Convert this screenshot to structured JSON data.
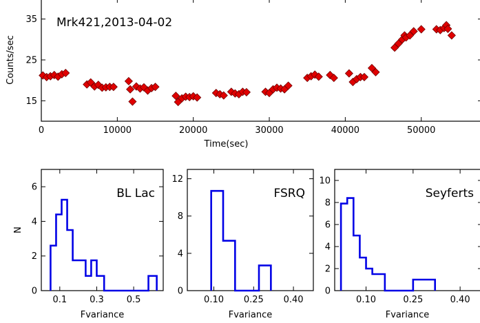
{
  "chart_data": [
    {
      "type": "scatter",
      "title": "Mrk421,2013-04-02",
      "xlabel": "Time(sec)",
      "ylabel": "Counts/sec",
      "xlim": [
        0,
        58000
      ],
      "ylim": [
        10,
        40
      ],
      "xticks": [
        0,
        10000,
        20000,
        30000,
        40000,
        50000
      ],
      "xtick_labels": [
        "0",
        "10000",
        "20000",
        "30000",
        "40000",
        "50000"
      ],
      "yticks": [
        15,
        25,
        35
      ],
      "ytick_labels": [
        "15",
        "25",
        "35"
      ],
      "marker": "diamond",
      "color": "#e00000",
      "x": [
        200,
        700,
        1200,
        1700,
        2200,
        2700,
        3200,
        6000,
        6500,
        7000,
        7500,
        8000,
        8500,
        9000,
        9500,
        11500,
        11700,
        12000,
        12500,
        13000,
        13500,
        14000,
        14500,
        15000,
        17700,
        18000,
        18500,
        19000,
        19500,
        20000,
        20500,
        23000,
        23500,
        24000,
        25000,
        25500,
        26000,
        26500,
        27000,
        29500,
        30000,
        30500,
        31000,
        31500,
        32000,
        32500,
        35000,
        35500,
        36000,
        36500,
        38000,
        38500,
        40500,
        41000,
        41500,
        42000,
        42500,
        43500,
        44000,
        46500,
        47000,
        47500,
        47800,
        48000,
        48500,
        49000,
        50000,
        52000,
        52500,
        53000,
        53300,
        53500,
        54000
      ],
      "y": [
        21.2,
        20.8,
        21.0,
        21.3,
        20.9,
        21.5,
        21.8,
        19.0,
        19.5,
        18.5,
        18.9,
        18.2,
        18.3,
        18.4,
        18.4,
        19.8,
        17.8,
        14.8,
        18.5,
        18.0,
        18.3,
        17.5,
        18.1,
        18.4,
        16.2,
        14.7,
        15.6,
        16.0,
        15.9,
        16.1,
        15.8,
        16.9,
        16.6,
        16.3,
        17.2,
        16.8,
        16.6,
        17.2,
        17.1,
        17.2,
        16.9,
        17.8,
        18.2,
        18.0,
        17.8,
        18.7,
        20.6,
        21.0,
        21.4,
        20.9,
        21.3,
        20.6,
        21.7,
        19.6,
        20.3,
        20.8,
        20.8,
        23.0,
        22.0,
        28.0,
        29.0,
        30.0,
        31.0,
        30.5,
        31.0,
        32.0,
        32.5,
        32.5,
        32.3,
        32.8,
        33.5,
        32.6,
        31.0
      ]
    },
    {
      "type": "histogram",
      "annotation": "BL Lac",
      "xlabel": "Fvariance",
      "ylabel": "N",
      "xlim": [
        0.0,
        0.66
      ],
      "ylim": [
        0,
        7
      ],
      "xticks": [
        0.1,
        0.3,
        0.5
      ],
      "xtick_labels": [
        "0.1",
        "0.3",
        "0.5"
      ],
      "yticks": [
        0,
        2,
        4,
        6
      ],
      "ytick_labels": [
        "0",
        "2",
        "4",
        "6"
      ],
      "color": "#0000e6",
      "bin_edges": [
        0.05,
        0.08,
        0.11,
        0.14,
        0.17,
        0.24,
        0.27,
        0.3,
        0.34,
        0.44,
        0.58,
        0.625
      ],
      "counts": [
        2.6,
        4.4,
        5.25,
        3.5,
        1.75,
        0.85,
        1.75,
        0.85,
        0.0,
        0.0,
        0.85
      ]
    },
    {
      "type": "histogram",
      "annotation": "FSRQ",
      "xlabel": "Fvariance",
      "ylabel": "",
      "xlim": [
        0.0,
        0.475
      ],
      "ylim": [
        0,
        13
      ],
      "xticks": [
        0.1,
        0.25,
        0.4
      ],
      "xtick_labels": [
        "0.10",
        "0.25",
        "0.40"
      ],
      "yticks": [
        0,
        4,
        8,
        12
      ],
      "ytick_labels": [
        "0",
        "4",
        "8",
        "12"
      ],
      "color": "#0000e6",
      "bin_edges": [
        0.09,
        0.135,
        0.18,
        0.225,
        0.27,
        0.315
      ],
      "counts": [
        10.7,
        5.35,
        0.0,
        0.0,
        2.7
      ]
    },
    {
      "type": "histogram",
      "annotation": "Seyferts",
      "xlabel": "Fvariance",
      "ylabel": "",
      "xlim": [
        0.0,
        0.47
      ],
      "ylim": [
        0,
        11
      ],
      "xticks": [
        0.1,
        0.25,
        0.4
      ],
      "xtick_labels": [
        "0.10",
        "0.25",
        "0.40"
      ],
      "yticks": [
        0,
        2,
        4,
        6,
        8,
        10
      ],
      "ytick_labels": [
        "0",
        "2",
        "4",
        "6",
        "8",
        "10"
      ],
      "color": "#0000e6",
      "bin_edges": [
        0.02,
        0.04,
        0.06,
        0.08,
        0.1,
        0.12,
        0.14,
        0.16,
        0.25,
        0.27,
        0.32
      ],
      "counts": [
        7.9,
        8.4,
        5.0,
        3.0,
        2.0,
        1.5,
        1.5,
        0.0,
        1.0,
        1.0
      ]
    }
  ]
}
